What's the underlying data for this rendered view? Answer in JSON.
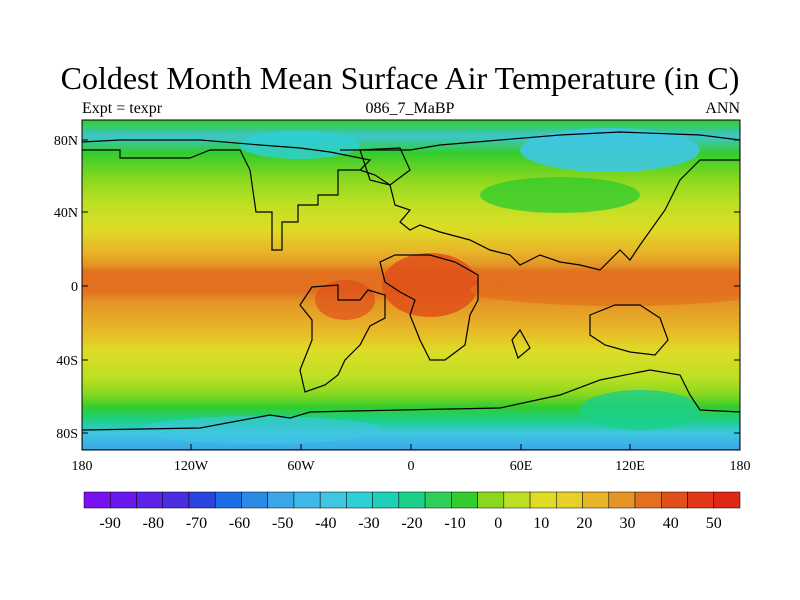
{
  "title": "Coldest Month Mean Surface Air Temperature (in C)",
  "left_label": "Expt = texpr",
  "center_label": "086_7_MaBP",
  "right_label": "ANN",
  "lat_ticks": [
    "80N",
    "40N",
    "0",
    "40S",
    "80S"
  ],
  "lon_ticks": [
    "180",
    "120W",
    "60W",
    "0",
    "60E",
    "120E",
    "180"
  ],
  "colorbar": {
    "labels": [
      "-90",
      "-80",
      "-70",
      "-60",
      "-50",
      "-40",
      "-30",
      "-20",
      "-10",
      "0",
      "10",
      "20",
      "30",
      "40",
      "50"
    ],
    "colors": [
      "#7a12f0",
      "#6a18ee",
      "#5c22e8",
      "#4a2ee2",
      "#2a44e0",
      "#1c6ee4",
      "#2a8ae6",
      "#3aa6e8",
      "#3eb8e6",
      "#3fc6e2",
      "#2ed0d8",
      "#1ed0b8",
      "#1cd08a",
      "#2fd05a",
      "#33cc2e",
      "#8ad81e",
      "#bce024",
      "#dedc26",
      "#e8d02a",
      "#e8b428",
      "#e49426",
      "#e2701e",
      "#e0501a",
      "#e03816",
      "#e02614"
    ]
  },
  "chart_data": {
    "type": "heatmap",
    "title": "Coldest Month Mean Surface Air Temperature (in C)",
    "subtitle": "086_7_MaBP",
    "x_range": [
      "180W",
      "180E"
    ],
    "y_range": [
      "90S",
      "90N"
    ],
    "zonal_band_values_C": [
      {
        "lat": "85N",
        "value": -20
      },
      {
        "lat": "70N",
        "value": -10
      },
      {
        "lat": "55N",
        "value": 10
      },
      {
        "lat": "40N",
        "value": 20
      },
      {
        "lat": "20N",
        "value": 30
      },
      {
        "lat": "5N",
        "value": 40
      },
      {
        "lat": "10S",
        "value": 35
      },
      {
        "lat": "30S",
        "value": 25
      },
      {
        "lat": "50S",
        "value": 15
      },
      {
        "lat": "65S",
        "value": 5
      },
      {
        "lat": "75S",
        "value": -15
      },
      {
        "lat": "85S",
        "value": -25
      }
    ],
    "colorbar_levels": [
      -90,
      -80,
      -70,
      -60,
      -50,
      -40,
      -30,
      -20,
      -10,
      0,
      10,
      20,
      30,
      40,
      50
    ]
  }
}
